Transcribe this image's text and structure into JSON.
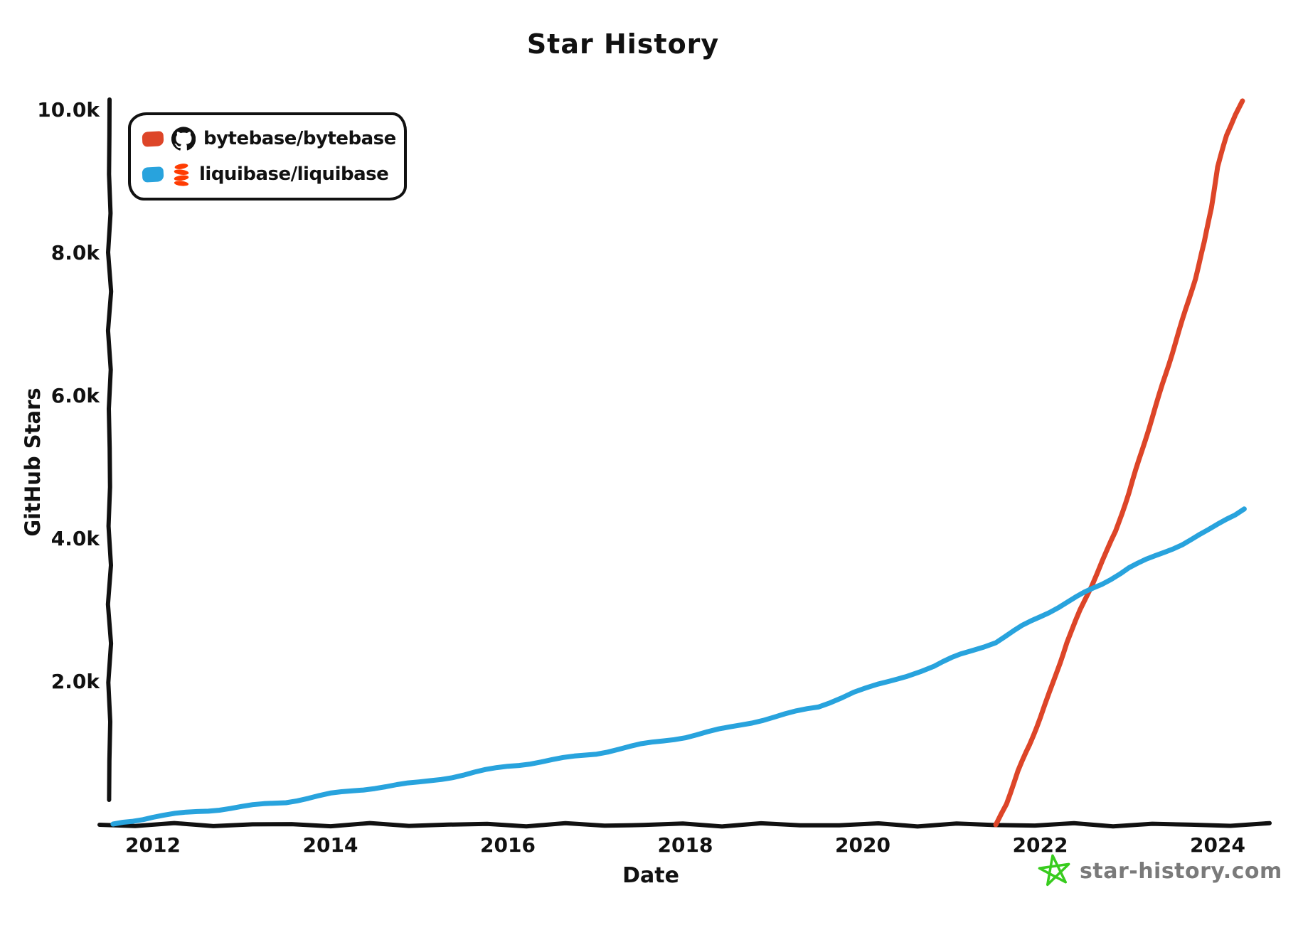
{
  "title": "Star History",
  "axes": {
    "x_title": "Date",
    "y_title": "GitHub Stars"
  },
  "legend": {
    "items": [
      {
        "label": "bytebase/bytebase",
        "swatch_color": "#dd4528",
        "icon": "github-logo-icon",
        "icon_color": "#111111"
      },
      {
        "label": "liquibase/liquibase",
        "swatch_color": "#28a3dd",
        "icon": "liquibase-logo-icon",
        "icon_color": "#ff3c02"
      }
    ]
  },
  "watermark": {
    "text": "star-history.com",
    "text_color": "#7a7a7a",
    "star_color": "#38cc1e"
  },
  "colors": {
    "axis": "#111111",
    "bytebase_line": "#dd4528",
    "liquibase_line": "#28a3dd",
    "background": "#ffffff"
  },
  "chart_data": {
    "type": "line",
    "title": "Star History",
    "xlabel": "Date",
    "ylabel": "GitHub Stars",
    "grid": false,
    "legend_position": "top-left",
    "xlim": [
      2011.4,
      2024.6
    ],
    "ylim": [
      0,
      10200
    ],
    "x_ticks": [
      {
        "value": 2012,
        "label": "2012"
      },
      {
        "value": 2014,
        "label": "2014"
      },
      {
        "value": 2016,
        "label": "2016"
      },
      {
        "value": 2018,
        "label": "2018"
      },
      {
        "value": 2020,
        "label": "2020"
      },
      {
        "value": 2022,
        "label": "2022"
      },
      {
        "value": 2024,
        "label": "2024"
      }
    ],
    "y_ticks": [
      {
        "value": 2000,
        "label": "2.0k"
      },
      {
        "value": 4000,
        "label": "4.0k"
      },
      {
        "value": 6000,
        "label": "6.0k"
      },
      {
        "value": 8000,
        "label": "8.0k"
      },
      {
        "value": 10000,
        "label": "10.0k"
      }
    ],
    "series": [
      {
        "name": "bytebase/bytebase",
        "color": "#dd4528",
        "points": [
          [
            2021.5,
            0
          ],
          [
            2021.62,
            300
          ],
          [
            2021.75,
            750
          ],
          [
            2021.88,
            1120
          ],
          [
            2022.0,
            1500
          ],
          [
            2022.15,
            2000
          ],
          [
            2022.3,
            2550
          ],
          [
            2022.45,
            3000
          ],
          [
            2022.58,
            3350
          ],
          [
            2022.7,
            3700
          ],
          [
            2022.85,
            4100
          ],
          [
            2023.0,
            4650
          ],
          [
            2023.15,
            5250
          ],
          [
            2023.3,
            5850
          ],
          [
            2023.45,
            6450
          ],
          [
            2023.6,
            7050
          ],
          [
            2023.75,
            7650
          ],
          [
            2023.85,
            8150
          ],
          [
            2023.93,
            8650
          ],
          [
            2024.0,
            9200
          ],
          [
            2024.1,
            9650
          ],
          [
            2024.2,
            9950
          ],
          [
            2024.28,
            10130
          ]
        ]
      },
      {
        "name": "liquibase/liquibase",
        "color": "#28a3dd",
        "points": [
          [
            2011.55,
            10
          ],
          [
            2012.0,
            110
          ],
          [
            2012.5,
            185
          ],
          [
            2013.0,
            250
          ],
          [
            2013.5,
            320
          ],
          [
            2014.0,
            430
          ],
          [
            2014.5,
            520
          ],
          [
            2015.0,
            590
          ],
          [
            2015.5,
            700
          ],
          [
            2016.0,
            820
          ],
          [
            2016.5,
            905
          ],
          [
            2017.0,
            1000
          ],
          [
            2017.5,
            1120
          ],
          [
            2018.0,
            1230
          ],
          [
            2018.5,
            1360
          ],
          [
            2019.0,
            1510
          ],
          [
            2019.5,
            1650
          ],
          [
            2019.9,
            1860
          ],
          [
            2020.3,
            2000
          ],
          [
            2020.5,
            2090
          ],
          [
            2020.8,
            2220
          ],
          [
            2021.1,
            2380
          ],
          [
            2021.5,
            2560
          ],
          [
            2021.8,
            2780
          ],
          [
            2022.1,
            2980
          ],
          [
            2022.4,
            3180
          ],
          [
            2022.7,
            3370
          ],
          [
            2023.0,
            3600
          ],
          [
            2023.3,
            3760
          ],
          [
            2023.6,
            3930
          ],
          [
            2023.9,
            4120
          ],
          [
            2024.1,
            4280
          ],
          [
            2024.3,
            4420
          ]
        ]
      }
    ]
  }
}
